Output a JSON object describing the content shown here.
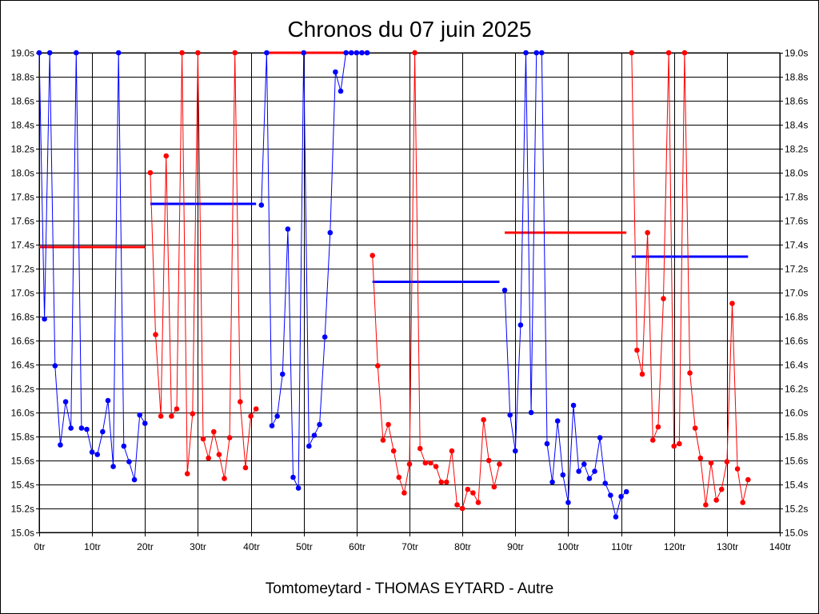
{
  "chart_data": {
    "type": "line",
    "title": "Chronos du 07 juin 2025",
    "footer": "Tomtomeytard - THOMAS EYTARD - Autre",
    "xlabel": "",
    "ylabel": "",
    "x_unit": "tr",
    "y_unit": "s",
    "xlim": [
      0,
      140
    ],
    "ylim": [
      15.0,
      19.0
    ],
    "x_ticks": [
      0,
      10,
      20,
      30,
      40,
      50,
      60,
      70,
      80,
      90,
      100,
      110,
      120,
      130,
      140
    ],
    "x_tick_labels": [
      "0tr",
      "10tr",
      "20tr",
      "30tr",
      "40tr",
      "50tr",
      "60tr",
      "70tr",
      "80tr",
      "90tr",
      "100tr",
      "110tr",
      "120tr",
      "130tr",
      "140tr"
    ],
    "y_ticks": [
      15.0,
      15.2,
      15.4,
      15.6,
      15.8,
      16.0,
      16.2,
      16.4,
      16.6,
      16.8,
      17.0,
      17.2,
      17.4,
      17.6,
      17.8,
      18.0,
      18.2,
      18.4,
      18.6,
      18.8,
      19.0
    ],
    "y_tick_labels": [
      "15.0s",
      "15.2s",
      "15.4s",
      "15.6s",
      "15.8s",
      "16.0s",
      "16.2s",
      "16.4s",
      "16.6s",
      "16.8s",
      "17.0s",
      "17.2s",
      "17.4s",
      "17.6s",
      "17.8s",
      "18.0s",
      "18.2s",
      "18.4s",
      "18.6s",
      "18.8s",
      "19.0s"
    ],
    "grid": true,
    "series": [
      {
        "color": "#0000ff",
        "x": [
          0,
          1,
          2,
          3,
          4,
          5,
          6,
          7,
          8,
          9,
          10,
          11,
          12,
          13,
          14,
          15,
          16,
          17,
          18,
          19,
          20
        ],
        "y": [
          19.0,
          16.78,
          19.0,
          16.39,
          15.73,
          16.09,
          15.87,
          19.0,
          15.87,
          15.86,
          15.67,
          15.65,
          15.84,
          16.1,
          15.55,
          19.0,
          15.72,
          15.59,
          15.44,
          15.98,
          15.91
        ]
      },
      {
        "color": "#ff0000",
        "x": [
          21,
          22,
          23,
          24,
          25,
          26,
          27,
          28,
          29,
          30,
          31,
          32,
          33,
          34,
          35,
          36,
          37,
          38,
          39,
          40,
          41
        ],
        "y": [
          18.0,
          16.65,
          15.97,
          18.14,
          15.97,
          16.03,
          19.0,
          15.49,
          15.99,
          19.0,
          15.78,
          15.62,
          15.84,
          15.65,
          15.45,
          15.79,
          19.0,
          16.09,
          15.54,
          15.97,
          16.03
        ]
      },
      {
        "color": "#0000ff",
        "x": [
          42,
          43,
          44,
          45,
          46,
          47,
          48,
          49,
          50,
          51,
          52,
          53,
          54,
          55,
          56,
          57,
          58,
          59,
          60,
          61,
          62
        ],
        "y": [
          17.73,
          19.0,
          15.89,
          15.97,
          16.32,
          17.53,
          15.46,
          15.37,
          19.0,
          15.72,
          15.81,
          15.9,
          16.63,
          17.5,
          18.84,
          18.68,
          19.0,
          19.0,
          19.0,
          19.0,
          19.0
        ]
      },
      {
        "color": "#ff0000",
        "x": [
          63,
          64,
          65,
          66,
          67,
          68,
          69,
          70,
          71,
          72,
          73,
          74,
          75,
          76,
          77,
          78,
          79,
          80,
          81,
          82,
          83,
          84,
          85,
          86,
          87
        ],
        "y": [
          17.31,
          16.39,
          15.77,
          15.9,
          15.68,
          15.46,
          15.33,
          15.57,
          19.0,
          15.7,
          15.58,
          15.58,
          15.55,
          15.42,
          15.42,
          15.68,
          15.23,
          15.2,
          15.36,
          15.33,
          15.25,
          15.94,
          15.6,
          15.38,
          15.57
        ]
      },
      {
        "color": "#0000ff",
        "x": [
          88,
          89,
          90,
          91,
          92,
          93,
          94,
          95,
          96,
          97,
          98,
          99,
          100,
          101,
          102,
          103,
          104,
          105,
          106,
          107,
          108,
          109,
          110,
          111
        ],
        "y": [
          17.02,
          15.98,
          15.68,
          16.73,
          19.0,
          16.0,
          19.0,
          19.0,
          15.74,
          15.42,
          15.93,
          15.48,
          15.25,
          16.06,
          15.51,
          15.57,
          15.45,
          15.51,
          15.79,
          15.41,
          15.31,
          15.13,
          15.3,
          15.34
        ]
      },
      {
        "color": "#ff0000",
        "x": [
          112,
          113,
          114,
          115,
          116,
          117,
          118,
          119,
          120,
          121,
          122,
          123,
          124,
          125,
          126,
          127,
          128,
          129,
          130,
          131,
          132,
          133,
          134
        ],
        "y": [
          19.0,
          16.52,
          16.32,
          17.5,
          15.77,
          15.88,
          16.95,
          19.0,
          15.72,
          15.74,
          19.0,
          16.33,
          15.87,
          15.62,
          15.23,
          15.58,
          15.27,
          15.36,
          15.59,
          16.91,
          15.53,
          15.25,
          15.44
        ]
      }
    ],
    "averages": [
      {
        "color": "#ff0000",
        "x_start": 0,
        "x_end": 20,
        "y": 17.38
      },
      {
        "color": "#0000ff",
        "x_start": 21,
        "x_end": 41,
        "y": 17.74
      },
      {
        "color": "#ff0000",
        "x_start": 43,
        "x_end": 62,
        "y": 19.0
      },
      {
        "color": "#0000ff",
        "x_start": 63,
        "x_end": 87,
        "y": 17.09
      },
      {
        "color": "#ff0000",
        "x_start": 88,
        "x_end": 111,
        "y": 17.5
      },
      {
        "color": "#0000ff",
        "x_start": 112,
        "x_end": 134,
        "y": 17.3
      }
    ]
  }
}
